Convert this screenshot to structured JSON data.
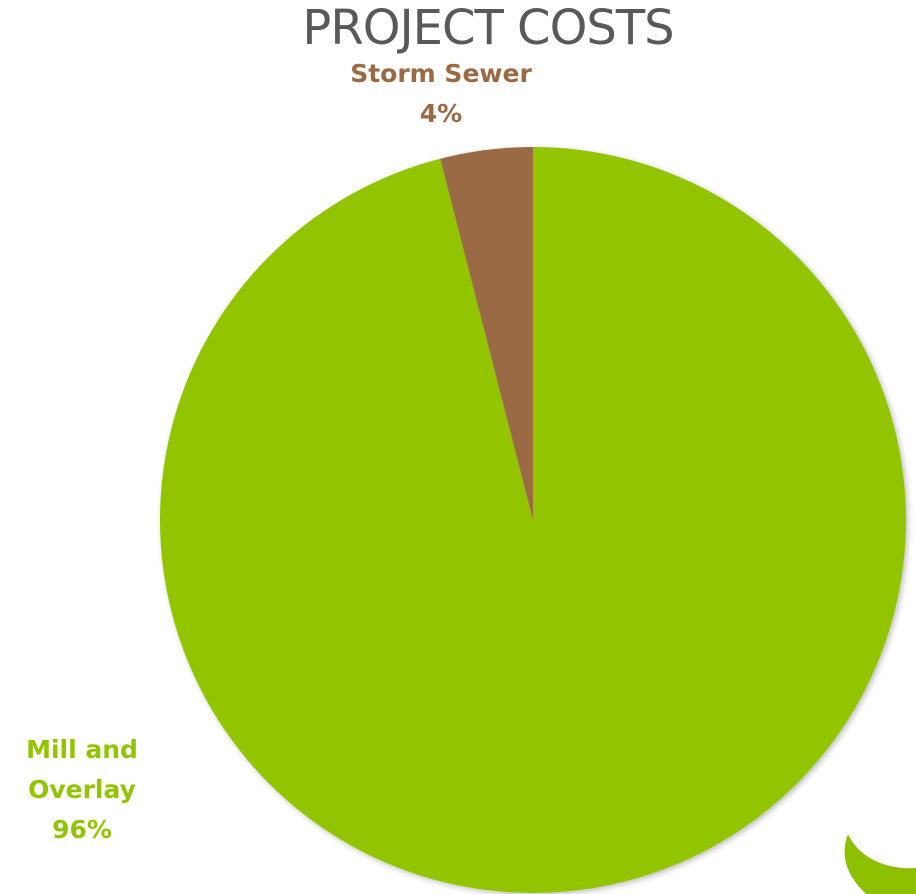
{
  "chart_data": {
    "type": "pie",
    "title": "PROJECT COSTS",
    "categories": [
      "Mill and Overlay",
      "Storm Sewer"
    ],
    "values": [
      96,
      4
    ],
    "value_labels": [
      "96%",
      "4%"
    ],
    "colors": [
      "#92c400",
      "#9a6a44"
    ]
  }
}
